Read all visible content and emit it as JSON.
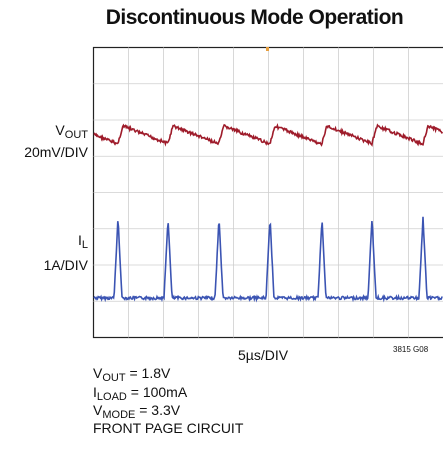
{
  "title": "Discontinuous Mode Operation",
  "channels": [
    {
      "symbol": "V",
      "subscript": "OUT",
      "scale": "20mV/DIV"
    },
    {
      "symbol": "I",
      "subscript": "L",
      "scale": "1A/DIV"
    }
  ],
  "time_scale": "5µs/DIV",
  "figure_id": "3815 G08",
  "conditions": [
    {
      "symbol": "V",
      "subscript": "OUT",
      "text": " = 1.8V"
    },
    {
      "symbol": "I",
      "subscript": "LOAD",
      "text": " = 100mA"
    },
    {
      "symbol": "V",
      "subscript": "MODE",
      "text": " = 3.3V"
    },
    {
      "text": "FRONT PAGE CIRCUIT"
    }
  ]
}
